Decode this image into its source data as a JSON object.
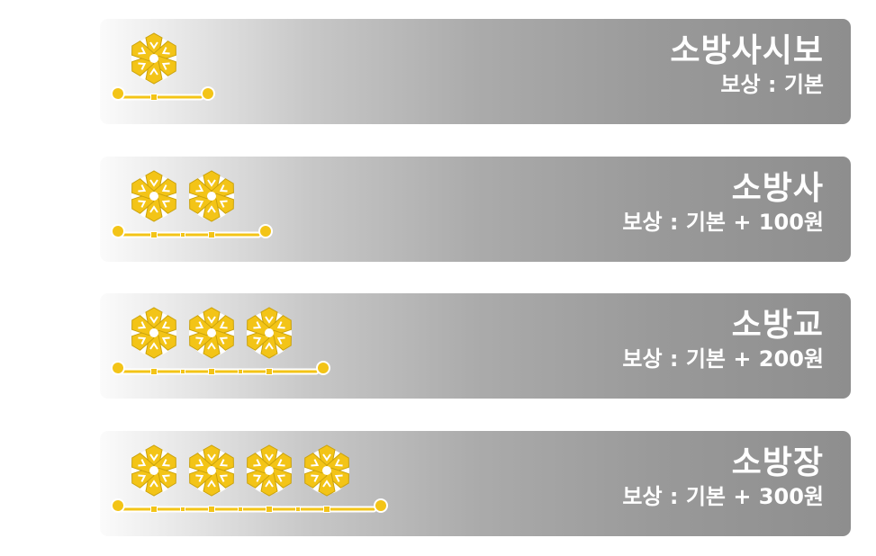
{
  "ranks": [
    {
      "title": "소방사시보",
      "reward": "보상 : 기본",
      "insignia_count": 1
    },
    {
      "title": "소방사",
      "reward": "보상 : 기본 + 100원",
      "insignia_count": 2
    },
    {
      "title": "소방교",
      "reward": "보상 : 기본 + 200원",
      "insignia_count": 3
    },
    {
      "title": "소방장",
      "reward": "보상 : 기본 + 300원",
      "insignia_count": 4
    }
  ],
  "colors": {
    "insignia_gold": "#f3c417",
    "insignia_shadow": "#caa20c",
    "text": "#ffffff"
  }
}
